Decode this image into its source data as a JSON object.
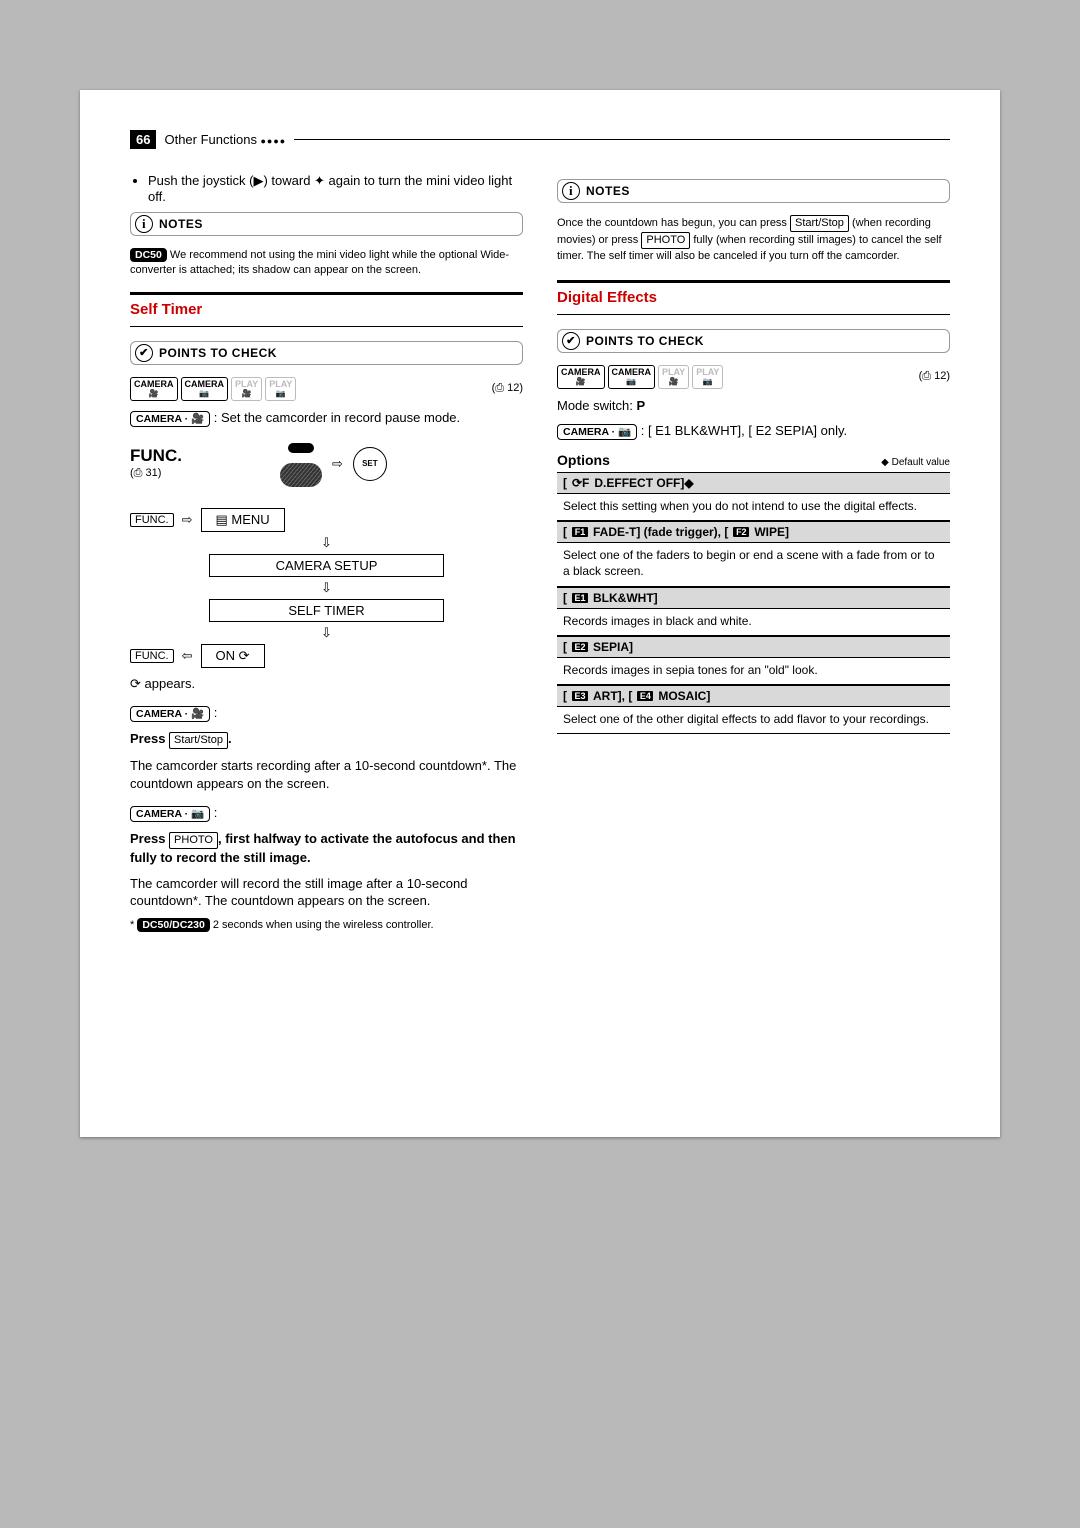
{
  "header": {
    "page_number": "66",
    "title": "Other Functions"
  },
  "left": {
    "push_joystick": "Push the joystick (▶) toward ✦ again to turn the mini video light off.",
    "notes_label": "NOTES",
    "dc50_note": "We recommend not using the mini video light while the optional Wide-converter is attached; its shadow can appear on the screen.",
    "dc50_badge": "DC50",
    "self_timer_title": "Self Timer",
    "points_label": "POINTS TO CHECK",
    "mode_ref": "(⎙ 12)",
    "cam_pause": ": Set the camcorder in record pause mode.",
    "func_label": "FUNC.",
    "func_ref": "(⎙ 31)",
    "func_key": "FUNC.",
    "menu_icon_label": "MENU",
    "camera_setup": "CAMERA SETUP",
    "self_timer_menu": "SELF TIMER",
    "on_label": "ON ⟳",
    "appears": "⟳ appears.",
    "press": "Press",
    "start_stop": "Start/Stop",
    "start_stop_dot": ".",
    "countdown_rec": "The camcorder starts recording after a 10-second countdown*. The countdown appears on the screen.",
    "photo": "PHOTO",
    "photo_instr_bold": ", first halfway to activate the autofocus and then fully to record the still image.",
    "still_countdown": "The camcorder will record the still image after a 10-second countdown*. The countdown appears on the screen.",
    "footnote_badge": "DC50/DC230",
    "footnote": "2 seconds when using the wireless controller.",
    "arrow_right": "⇨",
    "arrow_left": "⇦",
    "arrow_down": "⇩"
  },
  "right": {
    "notes_label": "NOTES",
    "notes_text1": "Once the countdown has begun, you can press",
    "start_stop": "Start/Stop",
    "notes_text2": "(when recording movies) or press",
    "photo": "PHOTO",
    "notes_text3": "fully (when recording still images) to cancel the self timer. The self timer will also be canceled if you turn off the camcorder.",
    "digital_title": "Digital Effects",
    "points_label": "POINTS TO CHECK",
    "mode_ref": "(⎙ 12)",
    "mode_switch": "Mode switch: ",
    "mode_switch_p": "P",
    "cam_line": ": [ E1  BLK&WHT], [ E2  SEPIA] only.",
    "options_label": "Options",
    "default_note": "◆ Default value",
    "opts": {
      "off": {
        "icon": "⟳F",
        "title": "D.EFFECT OFF]◆",
        "body": "Select this setting when you do not intend to use the digital effects."
      },
      "fader": {
        "i1": "F1",
        "t1": "FADE-T] (fade trigger), [",
        "i2": "F2",
        "t2": "WIPE]",
        "body": "Select one of the faders to begin or end a scene with a fade from or to a black screen."
      },
      "blkwht": {
        "i": "E1",
        "t": "BLK&WHT]",
        "body": "Records images in black and white."
      },
      "sepia": {
        "i": "E2",
        "t": "SEPIA]",
        "body": "Records images in sepia tones for an \"old\" look."
      },
      "art": {
        "i1": "E3",
        "t1": "ART], [",
        "i2": "E4",
        "t2": "MOSAIC]",
        "body": "Select one of the other digital effects to add flavor to your recordings."
      }
    }
  },
  "mode_boxes": {
    "cam_movie": "CAMERA",
    "cam_photo": "CAMERA",
    "play_movie": "PLAY",
    "play_photo": "PLAY",
    "movie_sub": "🎥",
    "photo_sub": "📷"
  }
}
